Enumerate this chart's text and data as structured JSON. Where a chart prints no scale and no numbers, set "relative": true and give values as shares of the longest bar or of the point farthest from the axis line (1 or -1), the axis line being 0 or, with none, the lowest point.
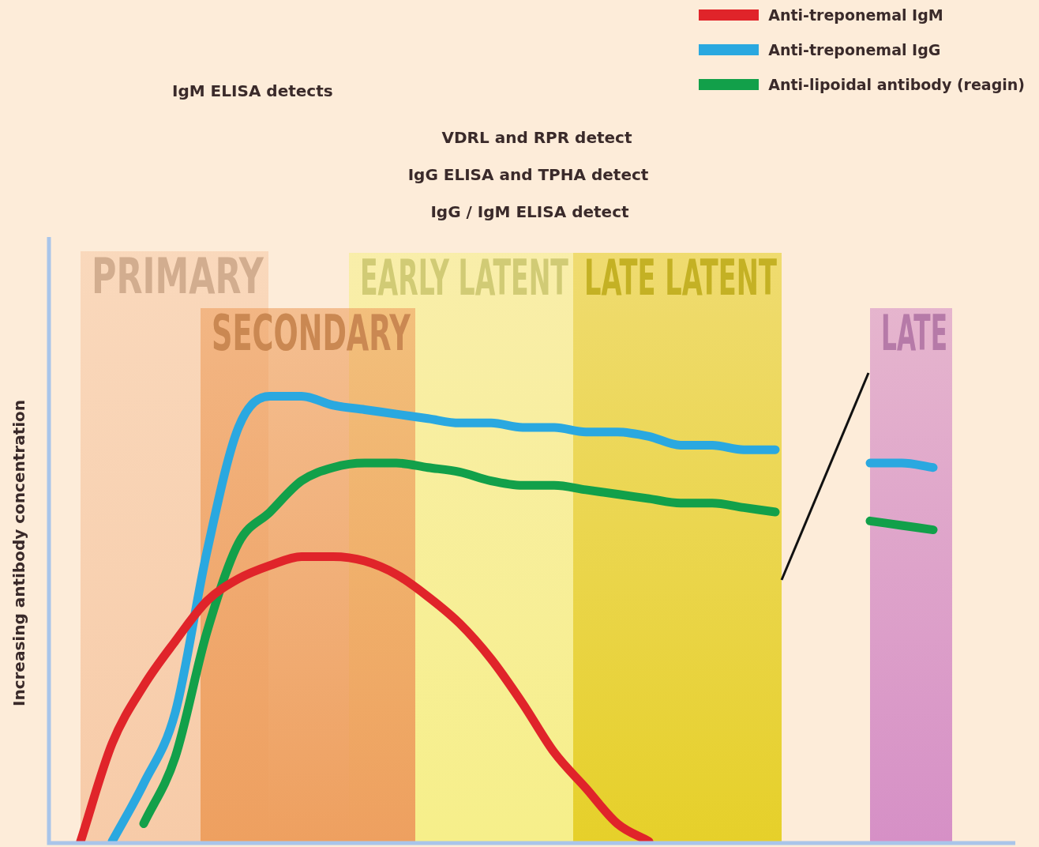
{
  "chart_data": {
    "type": "line",
    "relative": true,
    "ylabel": "Increasing antibody concentration",
    "legend": "top right",
    "marker": "none",
    "line_style": "solid",
    "categories": [
      null,
      null,
      null,
      null,
      null,
      null,
      null,
      null,
      null,
      null,
      null,
      null,
      null,
      null,
      null,
      null,
      null,
      null,
      null,
      null,
      null,
      null,
      null,
      null,
      null,
      null,
      null,
      null,
      null,
      null
    ],
    "series": [
      {
        "name": "Anti-treponemal IgM",
        "color": "#e0242a",
        "values": [
          null,
          0,
          0.22,
          0.35,
          0.45,
          0.54,
          0.59,
          0.62,
          0.64,
          0.64,
          0.63,
          0.6,
          0.55,
          0.49,
          0.41,
          0.31,
          0.2,
          0.12,
          0.04,
          0,
          null,
          null,
          null,
          null,
          null,
          null,
          null,
          null,
          null,
          null
        ]
      },
      {
        "name": "Anti-treponemal IgG",
        "color": "#2aa8e0",
        "values": [
          null,
          null,
          0,
          0.13,
          0.29,
          0.65,
          0.93,
          1,
          1,
          0.98,
          0.97,
          0.96,
          0.95,
          0.94,
          0.94,
          0.93,
          0.93,
          0.92,
          0.92,
          0.91,
          0.89,
          0.89,
          0.88,
          0.88,
          null,
          null,
          0.85,
          0.85,
          0.84,
          null
        ]
      },
      {
        "name": "Anti-lipoidal antibody (reagin)",
        "color": "#12a04a",
        "values": [
          null,
          null,
          null,
          0.04,
          0.19,
          0.47,
          0.67,
          0.74,
          0.81,
          0.84,
          0.85,
          0.85,
          0.84,
          0.83,
          0.81,
          0.8,
          0.8,
          0.79,
          0.78,
          0.77,
          0.76,
          0.76,
          0.75,
          0.74,
          null,
          null,
          0.72,
          0.71,
          0.7,
          null
        ]
      }
    ],
    "annotations": [
      "IgM ELISA detects",
      "VDRL and RPR detect",
      "IgG ELISA and TPHA detect",
      "IgG / IgM ELISA detect",
      "PRIMARY",
      "EARLY LATENT",
      "LATE LATENT",
      "SECONDARY",
      "LATE"
    ]
  }
}
